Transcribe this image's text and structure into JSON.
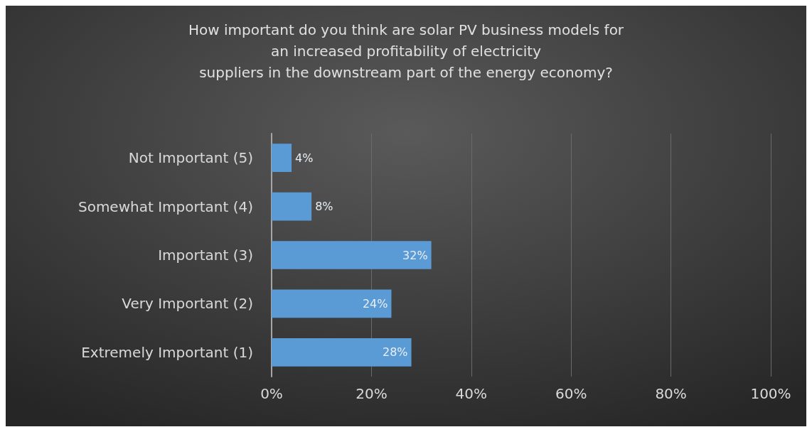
{
  "chart_data": {
    "type": "bar",
    "orientation": "horizontal",
    "title": "How important do you think are solar PV business models for\nan increased profitability of electricity\nsuppliers in the downstream part of the energy economy?",
    "categories": [
      "Not Important (5)",
      "Somewhat Important (4)",
      "Important (3)",
      "Very Important (2)",
      "Extremely Important (1)"
    ],
    "values": [
      4,
      8,
      32,
      24,
      28
    ],
    "value_labels": [
      "4%",
      "8%",
      "32%",
      "24%",
      "28%"
    ],
    "color": "#5b9bd5",
    "xlim": [
      0,
      100
    ],
    "xticks": [
      {
        "value": 0,
        "label": "0%"
      },
      {
        "value": 20,
        "label": "20%"
      },
      {
        "value": 40,
        "label": "40%"
      },
      {
        "value": 60,
        "label": "60%"
      },
      {
        "value": 80,
        "label": "80%"
      },
      {
        "value": 100,
        "label": "100%"
      }
    ],
    "grid": "x"
  }
}
